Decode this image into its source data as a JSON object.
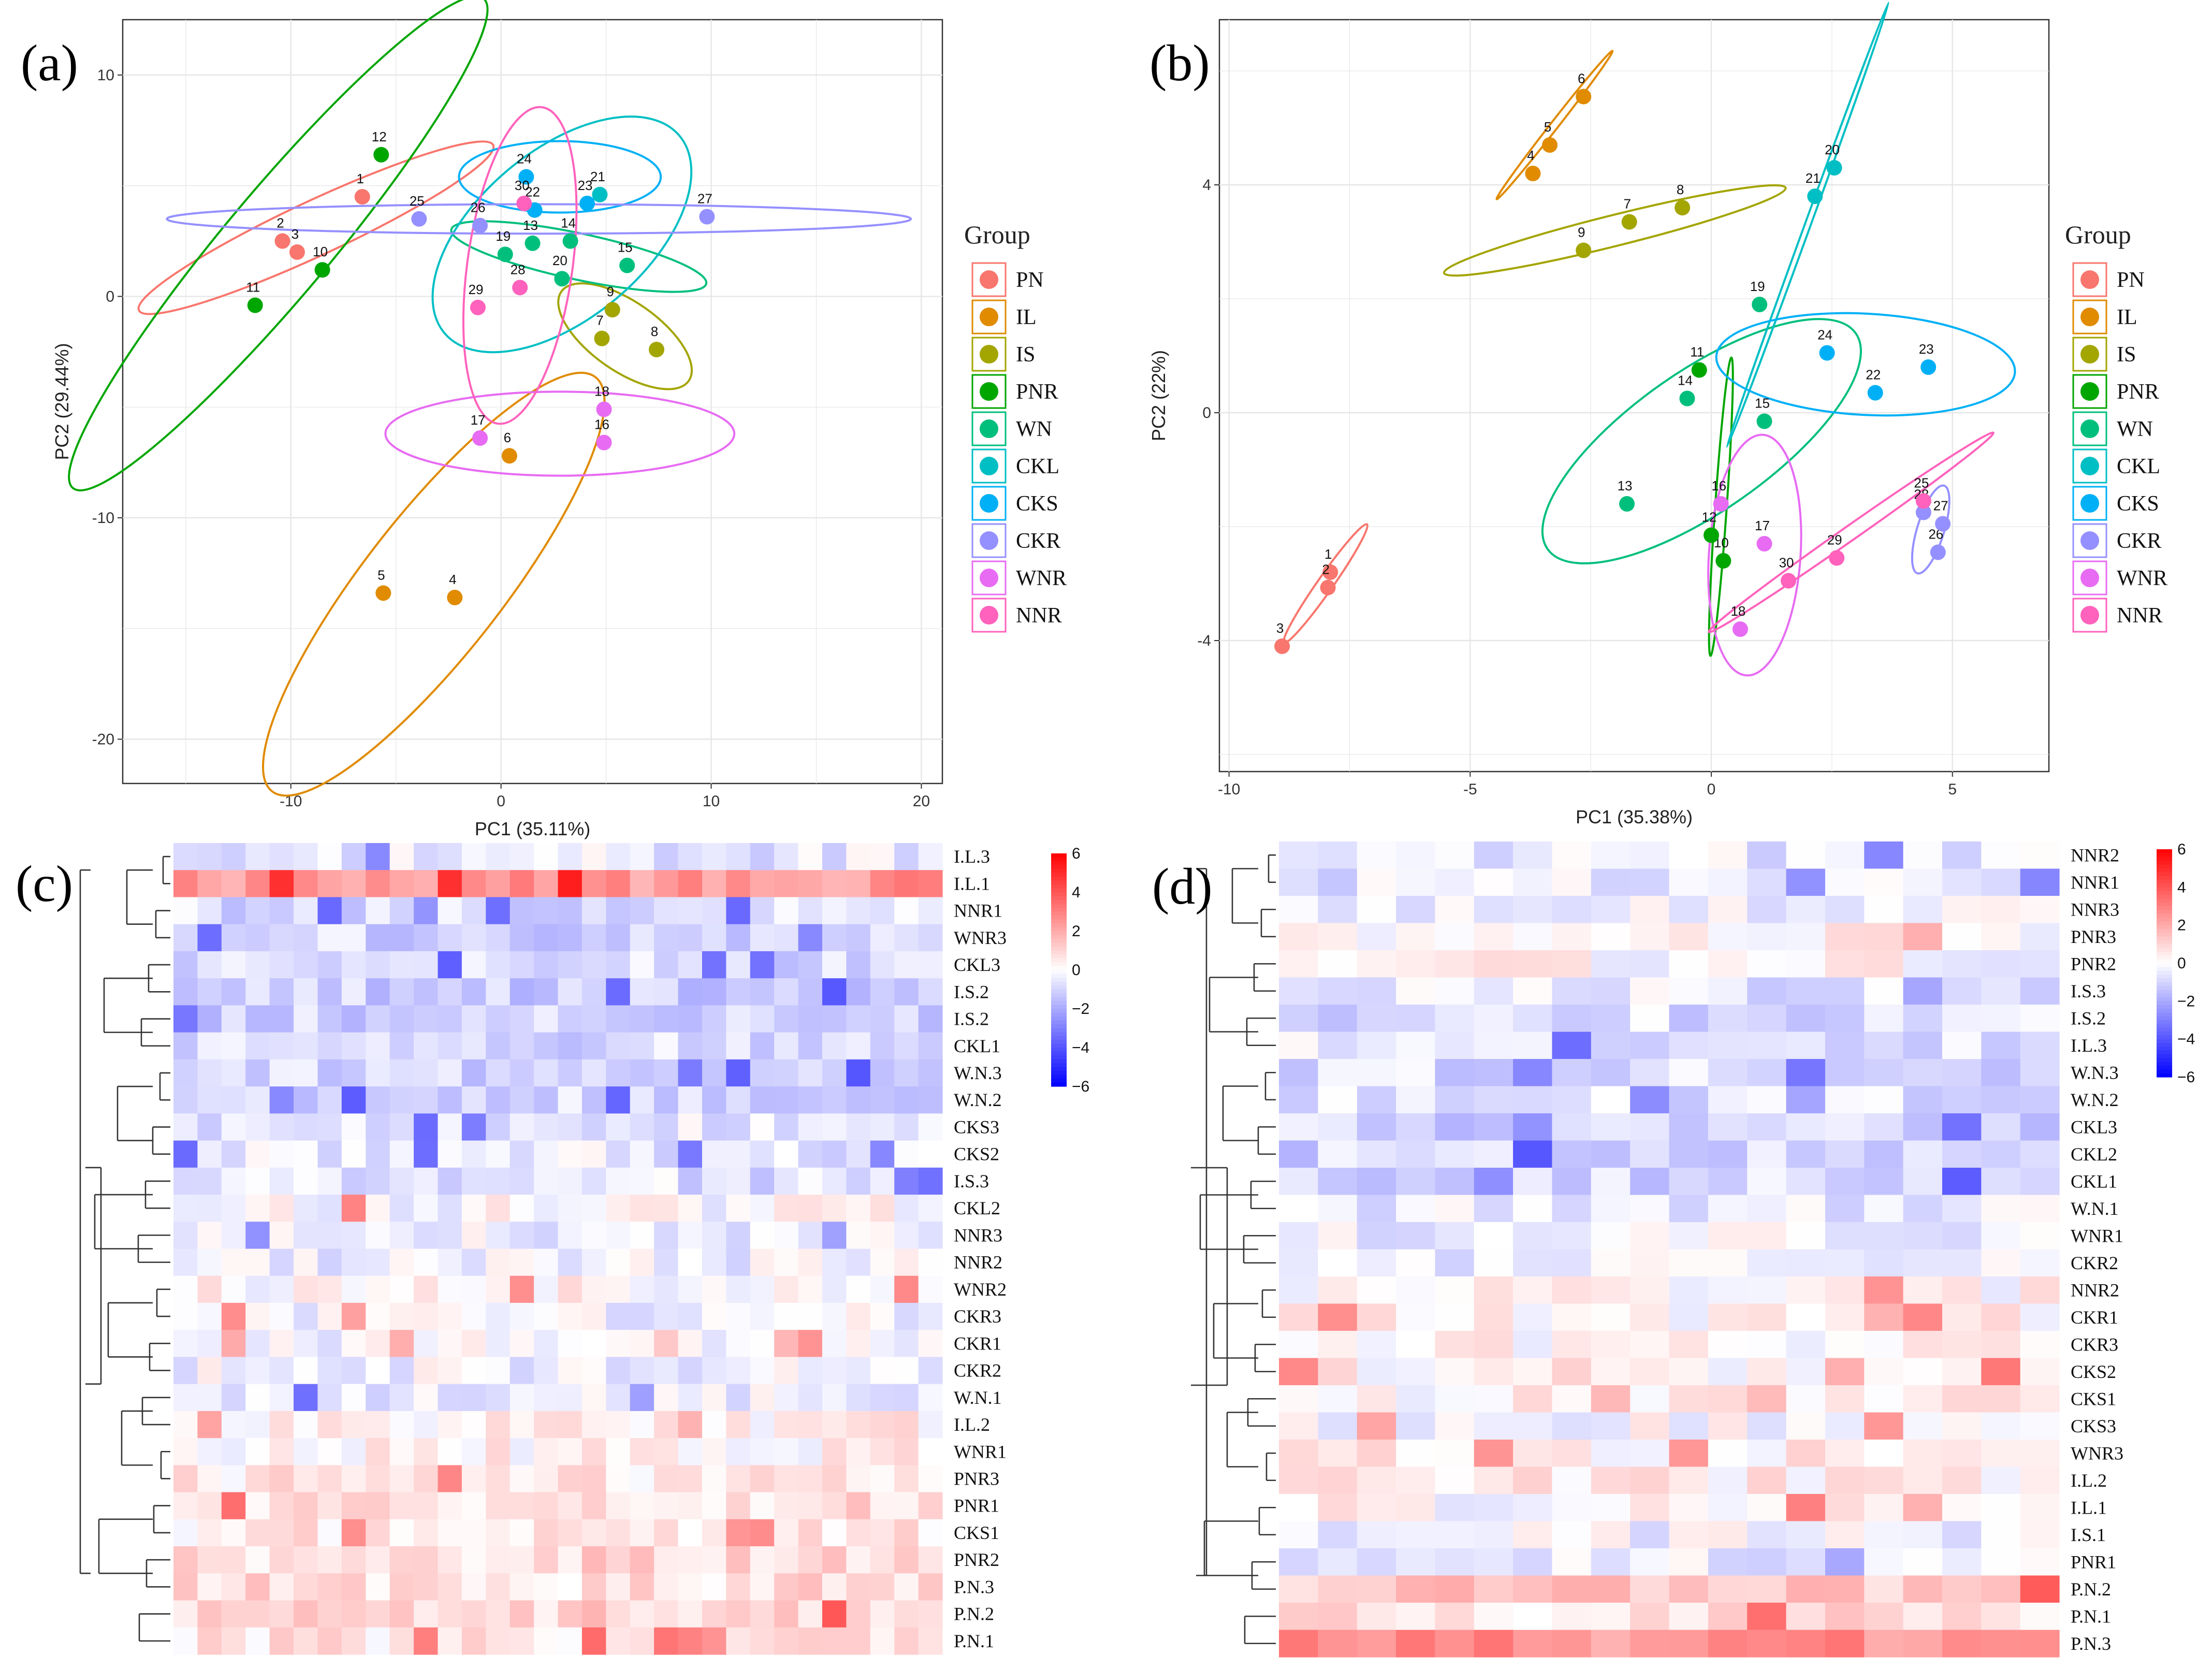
{
  "chart_data": [
    {
      "type": "scatter",
      "panel_label": "(a)",
      "xlabel": "PC1 (35.11%)",
      "ylabel": "PC2 (29.44%)",
      "xlim": [
        -18,
        21
      ],
      "ylim": [
        -22,
        12.5
      ],
      "xticks": [
        -10,
        0,
        10,
        20
      ],
      "yticks": [
        10,
        0,
        -10,
        -20
      ],
      "xtick_labels": [
        "-10",
        "0",
        "10",
        "20"
      ],
      "ytick_labels": [
        "10",
        "0",
        "-10",
        "-20"
      ],
      "legend_title": "Group",
      "groups": [
        {
          "name": "PN",
          "color": "#F8766D",
          "ellipse": {
            "cx": -8.8,
            "cy": 3.1,
            "rx": 9.3,
            "ry": 1.3,
            "angle": 25
          },
          "points": [
            {
              "label": "1",
              "x": -6.6,
              "y": 4.5
            },
            {
              "label": "2",
              "x": -10.4,
              "y": 2.5
            },
            {
              "label": "3",
              "x": -9.7,
              "y": 2.0
            }
          ]
        },
        {
          "name": "IL",
          "color": "#E08B00",
          "ellipse": {
            "cx": -3.2,
            "cy": -13.0,
            "rx": 12.5,
            "ry": 3.3,
            "angle": 52
          },
          "points": [
            {
              "label": "4",
              "x": -2.2,
              "y": -13.6
            },
            {
              "label": "5",
              "x": -5.6,
              "y": -13.4
            },
            {
              "label": "6",
              "x": 0.4,
              "y": -7.2
            }
          ]
        },
        {
          "name": "IS",
          "color": "#A3A500",
          "ellipse": {
            "cx": 5.9,
            "cy": -1.8,
            "rx": 3.7,
            "ry": 1.65,
            "angle": -35
          },
          "points": [
            {
              "label": "7",
              "x": 4.8,
              "y": -1.9
            },
            {
              "label": "8",
              "x": 7.4,
              "y": -2.4
            },
            {
              "label": "9",
              "x": 5.3,
              "y": -0.6
            }
          ]
        },
        {
          "name": "PNR",
          "color": "#00A600",
          "ellipse": {
            "cx": -10.6,
            "cy": 2.4,
            "rx": 15.2,
            "ry": 2.5,
            "angle": 50
          },
          "points": [
            {
              "label": "10",
              "x": -8.5,
              "y": 1.2
            },
            {
              "label": "11",
              "x": -11.7,
              "y": -0.4
            },
            {
              "label": "12",
              "x": -5.7,
              "y": 6.4
            }
          ]
        },
        {
          "name": "WN",
          "color": "#00BF7D",
          "ellipse": {
            "cx": 3.7,
            "cy": 1.8,
            "rx": 6.2,
            "ry": 1.1,
            "angle": -12
          },
          "points": [
            {
              "label": "13",
              "x": 1.5,
              "y": 2.4
            },
            {
              "label": "14",
              "x": 3.3,
              "y": 2.5
            },
            {
              "label": "15",
              "x": 6.0,
              "y": 1.4
            },
            {
              "label": "19",
              "x": 0.2,
              "y": 1.9
            },
            {
              "label": "20",
              "x": 2.9,
              "y": 0.8
            }
          ]
        },
        {
          "name": "CKL",
          "color": "#00BFC4",
          "ellipse": {
            "cx": 2.9,
            "cy": 2.8,
            "rx": 7.3,
            "ry": 4.0,
            "angle": 40
          },
          "points": [
            {
              "label": "21",
              "x": 4.7,
              "y": 4.6
            }
          ]
        },
        {
          "name": "CKS",
          "color": "#00B0F6",
          "ellipse": {
            "cx": 2.8,
            "cy": 5.4,
            "rx": 4.8,
            "ry": 1.7,
            "angle": 0
          },
          "points": [
            {
              "label": "22",
              "x": 1.6,
              "y": 3.9
            },
            {
              "label": "23",
              "x": 4.1,
              "y": 4.2
            },
            {
              "label": "24",
              "x": 1.2,
              "y": 5.4
            }
          ]
        },
        {
          "name": "CKR",
          "color": "#9590FF",
          "ellipse": {
            "cx": 1.8,
            "cy": 3.5,
            "rx": 17.7,
            "ry": 0.7,
            "angle": 0
          },
          "points": [
            {
              "label": "25",
              "x": -3.9,
              "y": 3.5
            },
            {
              "label": "26",
              "x": -1.0,
              "y": 3.2
            },
            {
              "label": "27",
              "x": 9.8,
              "y": 3.6
            }
          ]
        },
        {
          "name": "WNR",
          "color": "#E76BF3",
          "ellipse": {
            "cx": 2.8,
            "cy": -6.2,
            "rx": 8.3,
            "ry": 2.0,
            "angle": 0
          },
          "points": [
            {
              "label": "16",
              "x": 4.9,
              "y": -6.6
            },
            {
              "label": "17",
              "x": -1.0,
              "y": -6.4
            },
            {
              "label": "18",
              "x": 4.9,
              "y": -5.1
            }
          ]
        },
        {
          "name": "NNR",
          "color": "#FF62BC",
          "ellipse": {
            "cx": 0.9,
            "cy": 1.4,
            "rx": 7.6,
            "ry": 2.5,
            "angle": 82
          },
          "points": [
            {
              "label": "28",
              "x": 0.9,
              "y": 0.4
            },
            {
              "label": "29",
              "x": -1.1,
              "y": -0.5
            },
            {
              "label": "30",
              "x": 1.1,
              "y": 4.2
            }
          ]
        }
      ]
    },
    {
      "type": "scatter",
      "panel_label": "(b)",
      "xlabel": "PC1 (35.38%)",
      "ylabel": "PC2 (22%)",
      "xlim": [
        -10.2,
        7
      ],
      "ylim": [
        -6.3,
        6.9
      ],
      "xticks": [
        -10,
        -5,
        0,
        5
      ],
      "yticks": [
        4,
        0,
        -4
      ],
      "xtick_labels": [
        "-10",
        "-5",
        "0",
        "5"
      ],
      "ytick_labels": [
        "4",
        "0",
        "-4"
      ],
      "legend_title": "Group",
      "groups": [
        {
          "name": "PN",
          "color": "#F8766D",
          "ellipse": {
            "cx": -8.0,
            "cy": -3.0,
            "rx": 1.5,
            "ry": 0.16,
            "angle": 55
          },
          "points": [
            {
              "label": "1",
              "x": -7.9,
              "y": -2.8
            },
            {
              "label": "2",
              "x": -7.95,
              "y": -3.07
            },
            {
              "label": "3",
              "x": -8.9,
              "y": -4.1
            }
          ]
        },
        {
          "name": "IL",
          "color": "#E08B00",
          "ellipse": {
            "cx": -3.25,
            "cy": 5.05,
            "rx": 1.95,
            "ry": 0.08,
            "angle": 52
          },
          "points": [
            {
              "label": "4",
              "x": -3.7,
              "y": 4.2
            },
            {
              "label": "5",
              "x": -3.35,
              "y": 4.7
            },
            {
              "label": "6",
              "x": -2.65,
              "y": 5.55
            }
          ]
        },
        {
          "name": "IS",
          "color": "#A3A500",
          "ellipse": {
            "cx": -2.0,
            "cy": 3.2,
            "rx": 3.65,
            "ry": 0.32,
            "angle": 14
          },
          "points": [
            {
              "label": "7",
              "x": -1.7,
              "y": 3.35
            },
            {
              "label": "8",
              "x": -0.6,
              "y": 3.6
            },
            {
              "label": "9",
              "x": -2.65,
              "y": 2.85
            }
          ]
        },
        {
          "name": "PNR",
          "color": "#00A600",
          "ellipse": {
            "cx": 0.2,
            "cy": -1.65,
            "rx": 3.1,
            "ry": 0.12,
            "angle": 86
          },
          "points": [
            {
              "label": "10",
              "x": 0.25,
              "y": -2.6
            },
            {
              "label": "11",
              "x": -0.25,
              "y": 0.75
            },
            {
              "label": "12",
              "x": 0.0,
              "y": -2.15
            }
          ]
        },
        {
          "name": "WN",
          "color": "#00BF7D",
          "ellipse": {
            "cx": -0.2,
            "cy": -0.5,
            "rx": 3.9,
            "ry": 1.45,
            "angle": 35
          },
          "points": [
            {
              "label": "13",
              "x": -1.75,
              "y": -1.6
            },
            {
              "label": "14",
              "x": -0.5,
              "y": 0.25
            },
            {
              "label": "15",
              "x": 1.1,
              "y": -0.15
            },
            {
              "label": "19",
              "x": 1.0,
              "y": 1.9
            }
          ]
        },
        {
          "name": "CKL",
          "color": "#00BFC4",
          "ellipse": {
            "cx": 2.0,
            "cy": 3.3,
            "rx": 4.9,
            "ry": 0.06,
            "angle": 70
          },
          "points": [
            {
              "label": "20",
              "x": 2.55,
              "y": 4.3
            },
            {
              "label": "21",
              "x": 2.15,
              "y": 3.8
            }
          ]
        },
        {
          "name": "CKS",
          "color": "#00B0F6",
          "ellipse": {
            "cx": 3.2,
            "cy": 0.85,
            "rx": 3.1,
            "ry": 1.05,
            "angle": -3
          },
          "points": [
            {
              "label": "22",
              "x": 3.4,
              "y": 0.35
            },
            {
              "label": "23",
              "x": 4.5,
              "y": 0.8
            },
            {
              "label": "24",
              "x": 2.4,
              "y": 1.05
            }
          ]
        },
        {
          "name": "CKR",
          "color": "#9590FF",
          "ellipse": {
            "cx": 4.55,
            "cy": -2.05,
            "rx": 0.95,
            "ry": 0.28,
            "angle": 73
          },
          "points": [
            {
              "label": "26",
              "x": 4.7,
              "y": -2.45
            },
            {
              "label": "27",
              "x": 4.8,
              "y": -1.95
            },
            {
              "label": "28",
              "x": 4.4,
              "y": -1.75
            }
          ]
        },
        {
          "name": "WNR",
          "color": "#E76BF3",
          "ellipse": {
            "cx": 0.9,
            "cy": -2.5,
            "rx": 2.5,
            "ry": 0.95,
            "angle": 86
          },
          "points": [
            {
              "label": "16",
              "x": 0.2,
              "y": -1.6
            },
            {
              "label": "17",
              "x": 1.1,
              "y": -2.3
            },
            {
              "label": "18",
              "x": 0.6,
              "y": -3.8
            }
          ]
        },
        {
          "name": "NNR",
          "color": "#FF62BC",
          "ellipse": {
            "cx": 2.9,
            "cy": -2.1,
            "rx": 3.6,
            "ry": 0.15,
            "angle": 35
          },
          "points": [
            {
              "label": "25",
              "x": 4.4,
              "y": -1.55
            },
            {
              "label": "29",
              "x": 2.6,
              "y": -2.55
            },
            {
              "label": "30",
              "x": 1.6,
              "y": -2.95
            }
          ]
        }
      ]
    },
    {
      "type": "heatmap",
      "panel_label": "(c)",
      "rows": [
        "I.L.3",
        "I.L.1",
        "NNR1",
        "WNR3",
        "CKL3",
        "I.S.2",
        "I.S.2",
        "CKL1",
        "W.N.3",
        "W.N.2",
        "CKS3",
        "CKS2",
        "I.S.3",
        "CKL2",
        "NNR3",
        "NNR2",
        "WNR2",
        "CKR3",
        "CKR1",
        "CKR2",
        "W.N.1",
        "I.L.2",
        "WNR1",
        "PNR3",
        "PNR1",
        "CKS1",
        "PNR2",
        "P.N.3",
        "P.N.2",
        "P.N.1"
      ],
      "n_cols": 32,
      "row_base": [
        -0.5,
        2.5,
        -0.8,
        -1.0,
        -0.9,
        -1.1,
        -1.1,
        -0.9,
        -1.0,
        -1.0,
        -0.6,
        -0.5,
        -0.7,
        0.0,
        -0.4,
        -0.3,
        0.2,
        -0.2,
        -0.2,
        -0.3,
        -0.4,
        0.4,
        0.3,
        0.6,
        0.8,
        0.5,
        0.9,
        0.8,
        1.0,
        0.6
      ],
      "colorbar": {
        "min": -6,
        "max": 6,
        "ticks": [
          6,
          4,
          2,
          0,
          -2,
          -4,
          -6
        ],
        "tick_labels": [
          "6",
          "4",
          "2",
          "0",
          "−2",
          "−4",
          "−6"
        ],
        "low": "#0000FF",
        "mid": "#FFFFFF",
        "high": "#FF0000"
      }
    },
    {
      "type": "heatmap",
      "panel_label": "(d)",
      "rows": [
        "NNR2",
        "NNR1",
        "NNR3",
        "PNR3",
        "PNR2",
        "I.S.3",
        "I.S.2",
        "I.L.3",
        "W.N.3",
        "W.N.2",
        "CKL3",
        "CKL2",
        "CKL1",
        "W.N.1",
        "WNR1",
        "CKR2",
        "NNR2",
        "CKR1",
        "CKR3",
        "CKS2",
        "CKS1",
        "CKS3",
        "WNR3",
        "I.L.2",
        "I.L.1",
        "I.S.1",
        "PNR1",
        "P.N.2",
        "P.N.1",
        "P.N.3"
      ],
      "n_cols": 20,
      "row_base": [
        -0.5,
        -0.6,
        -0.3,
        0.2,
        0.1,
        -0.6,
        -0.8,
        -0.6,
        -0.9,
        -0.7,
        -1.0,
        -1.0,
        -0.9,
        -0.4,
        -0.3,
        -0.3,
        0.2,
        0.2,
        0.1,
        0.3,
        0.2,
        0.0,
        0.3,
        0.3,
        0.1,
        -0.3,
        -0.4,
        1.2,
        0.8,
        2.6
      ],
      "colorbar": {
        "min": -6,
        "max": 6,
        "ticks": [
          6,
          4,
          2,
          0,
          -2,
          -4,
          -6
        ],
        "tick_labels": [
          "6",
          "4",
          "2",
          "0",
          "−2",
          "−4",
          "−6"
        ],
        "low": "#0000FF",
        "mid": "#FFFFFF",
        "high": "#FF0000"
      }
    }
  ]
}
